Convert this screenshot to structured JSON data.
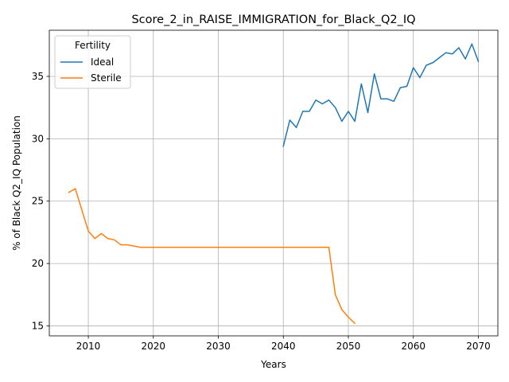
{
  "chart_data": {
    "type": "line",
    "title": "Score_2_in_RAISE_IMMIGRATION_for_Black_Q2_IQ",
    "xlabel": "Years",
    "ylabel": "% of Black Q2_IQ Population",
    "xlim": [
      2004,
      2073
    ],
    "ylim": [
      14.2,
      38.7
    ],
    "xticks": [
      2010,
      2020,
      2030,
      2040,
      2050,
      2060,
      2070
    ],
    "yticks": [
      15,
      20,
      25,
      30,
      35
    ],
    "grid": true,
    "legend": {
      "title": "Fertility",
      "placement": "top-left"
    },
    "series": [
      {
        "name": "Ideal",
        "color": "#1f77b4",
        "x": [
          2040,
          2041,
          2042,
          2043,
          2044,
          2045,
          2046,
          2047,
          2048,
          2049,
          2050,
          2051,
          2052,
          2053,
          2054,
          2055,
          2056,
          2057,
          2058,
          2059,
          2060,
          2061,
          2062,
          2063,
          2064,
          2065,
          2066,
          2067,
          2068,
          2069,
          2070
        ],
        "y": [
          29.4,
          31.5,
          30.9,
          32.2,
          32.2,
          33.1,
          32.8,
          33.1,
          32.5,
          31.4,
          32.2,
          31.4,
          34.4,
          32.1,
          35.2,
          33.2,
          33.2,
          33.0,
          34.1,
          34.2,
          35.7,
          34.9,
          35.9,
          36.1,
          36.5,
          36.9,
          36.8,
          37.3,
          36.4,
          37.6,
          36.2
        ]
      },
      {
        "name": "Sterile",
        "color": "#ff7f0e",
        "x": [
          2007,
          2008,
          2009,
          2010,
          2011,
          2012,
          2013,
          2014,
          2015,
          2016,
          2017,
          2018,
          2019,
          2020,
          2025,
          2030,
          2035,
          2040,
          2045,
          2046,
          2047,
          2048,
          2049,
          2050,
          2051
        ],
        "y": [
          25.7,
          26.0,
          24.3,
          22.6,
          22.0,
          22.4,
          22.0,
          21.9,
          21.5,
          21.5,
          21.4,
          21.3,
          21.3,
          21.3,
          21.3,
          21.3,
          21.3,
          21.3,
          21.3,
          21.3,
          21.3,
          17.5,
          16.3,
          15.7,
          15.2
        ]
      }
    ]
  }
}
